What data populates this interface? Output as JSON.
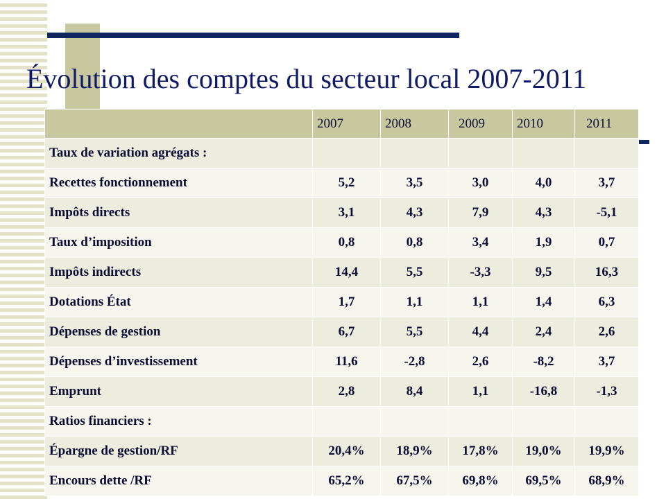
{
  "title": "Évolution des comptes du secteur local 2007-2011",
  "table": {
    "corner": "",
    "years": [
      "2007",
      "2008",
      "2009",
      "2010",
      "2011"
    ],
    "rows": [
      {
        "label": "Taux de variation agrégats :",
        "section": true,
        "values": [
          "",
          "",
          "",
          "",
          ""
        ]
      },
      {
        "label": "Recettes fonctionnement",
        "values": [
          "5,2",
          "3,5",
          "3,0",
          "4,0",
          "3,7"
        ]
      },
      {
        "label": "Impôts directs",
        "values": [
          "3,1",
          "4,3",
          "7,9",
          "4,3",
          "-5,1"
        ]
      },
      {
        "label": "Taux d’imposition",
        "values": [
          "0,8",
          "0,8",
          "3,4",
          "1,9",
          "0,7"
        ]
      },
      {
        "label": "Impôts indirects",
        "values": [
          "14,4",
          "5,5",
          "-3,3",
          "9,5",
          "16,3"
        ]
      },
      {
        "label": "Dotations État",
        "values": [
          "1,7",
          "1,1",
          "1,1",
          "1,4",
          "6,3"
        ]
      },
      {
        "label": "Dépenses de gestion",
        "values": [
          "6,7",
          "5,5",
          "4,4",
          "2,4",
          "2,6"
        ]
      },
      {
        "label": "Dépenses d’investissement",
        "values": [
          "11,6",
          "-2,8",
          "2,6",
          "-8,2",
          "3,7"
        ]
      },
      {
        "label": "Emprunt",
        "values": [
          "2,8",
          "8,4",
          "1,1",
          "-16,8",
          "-1,3"
        ]
      },
      {
        "label": "Ratios financiers :",
        "section": true,
        "values": [
          "",
          "",
          "",
          "",
          ""
        ]
      },
      {
        "label": "Épargne de gestion/RF",
        "values": [
          "20,4%",
          "18,9%",
          "17,8%",
          "19,0%",
          "19,9%"
        ]
      },
      {
        "label": "Encours dette /RF",
        "values": [
          "65,2%",
          "67,5%",
          "69,8%",
          "69,5%",
          "68,9%"
        ]
      }
    ]
  },
  "colors": {
    "title": "#0f1a66",
    "section_text": "#1a9c4a",
    "negative_text": "#e00000",
    "header_bg": "#c8c8a0",
    "accent_bar": "#0f2660"
  }
}
